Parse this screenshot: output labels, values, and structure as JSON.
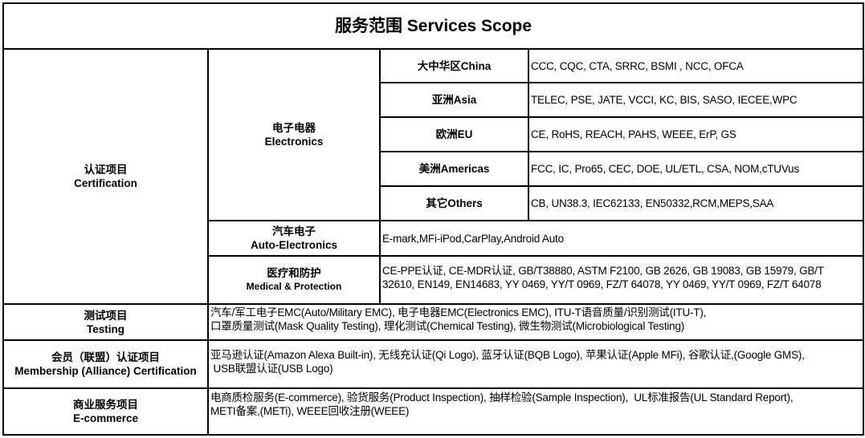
{
  "title": "服务范围 Services Scope",
  "certification": {
    "label_cn": "认证项目",
    "label_en": "Certification",
    "electronics": {
      "label_cn": "电子电器",
      "label_en": "Electronics",
      "regions": [
        {
          "region": "大中华区China",
          "standards": "CCC, CQC, CTA, SRRC, BSMI , NCC, OFCA"
        },
        {
          "region": "亚洲Asia",
          "standards": "TELEC, PSE, JATE, VCCI, KC, BIS, SASO, IECEE,WPC"
        },
        {
          "region": "欧洲EU",
          "standards": "CE, RoHS, REACH, PAHS, WEEE, ErP, GS"
        },
        {
          "region": "美洲Americas",
          "standards": "FCC, IC, Pro65, CEC, DOE, UL/ETL, CSA, NOM,cTUVus"
        },
        {
          "region": "其它Others",
          "standards": "CB, UN38.3, IEC62133, EN50332,RCM,MEPS,SAA"
        }
      ]
    },
    "auto": {
      "label_cn": "汽车电子",
      "label_en": "Auto-Electronics",
      "standards": "E-mark,MFi-iPod,CarPlay,Android Auto"
    },
    "medical": {
      "label_cn": "医疗和防护",
      "label_en": "Medical & Protection",
      "lines": [
        "CE-PPE认证, CE-MDR认证, GB/T38880, ASTM F2100, GB 2626, GB 19083, GB 15979, GB/T",
        "32610, EN149, EN14683, YY 0469, YY/T 0969, FZ/T 64078, YY 0469, YY/T 0969, FZ/T 64078"
      ]
    }
  },
  "testing": {
    "label_cn": "测试项目",
    "label_en": "Testing",
    "lines": [
      "汽车/军工电子EMC(Auto/Military EMC), 电子电器EMC(Electronics EMC), ITU-T语音质量/识别测试(ITU-T),",
      "口罩质量测试(Mask Quality Testing), 理化测试(Chemical Testing), 微生物测试(Microbiological Testing)"
    ]
  },
  "membership": {
    "label_cn": "会员（联盟）认证项目",
    "label_en": "Membership (Alliance) Certification",
    "lines": [
      "亚马逊认证(Amazon Alexa Built-in), 无线充认证(Qi Logo), 蓝牙认证(BQB Logo), 苹果认证(Apple MFi), 谷歌认证,(Google GMS),",
      " USB联盟认证(USB Logo)"
    ]
  },
  "ecommerce": {
    "label_cn": "商业服务项目",
    "label_en": "E-commerce",
    "lines": [
      "电商质检服务(E-commerce), 验货服务(Product Inspection), 抽样检验(Sample Inspection),  UL标准报告(UL Standard Report),",
      "METI备案,(METi), WEEE回收注册(WEEE)"
    ]
  }
}
